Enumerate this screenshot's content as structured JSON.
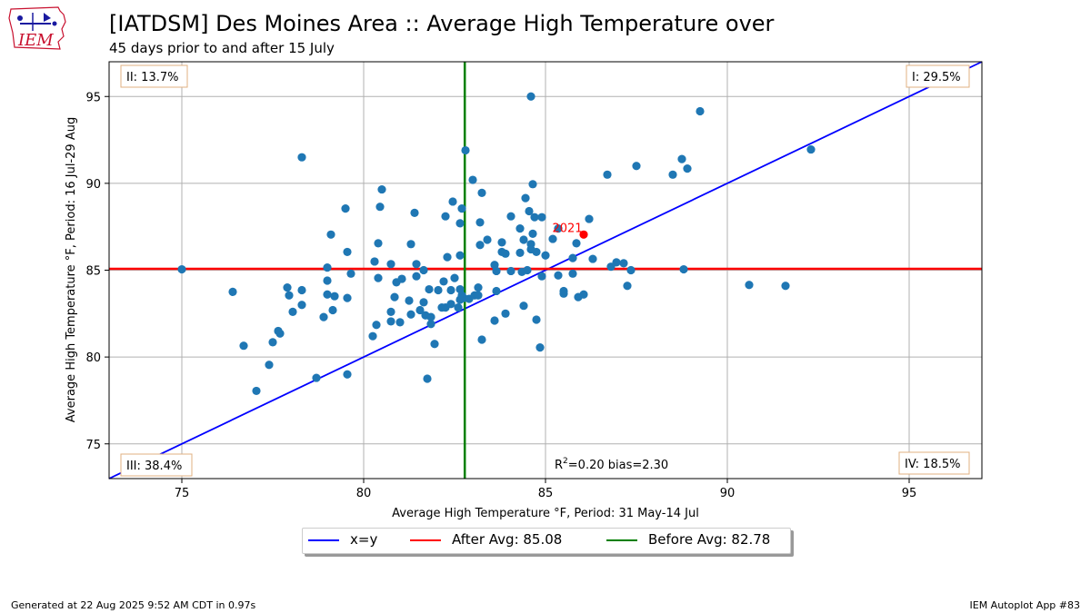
{
  "header": {
    "title": "[IATDSM] Des Moines Area :: Average High Temperature over",
    "subtitle": "45 days prior to and after 15 July"
  },
  "logo": {
    "text": "IEM",
    "icon": "iowa-state-outline-weather-icon"
  },
  "footer": {
    "generated": "Generated at 22 Aug 2025 9:52 AM CDT in 0.97s",
    "app": "IEM Autoplot App #83"
  },
  "chart_data": {
    "type": "scatter",
    "xlabel": "Average High Temperature $^\\circ$F, Period: 31 May-14 Jul",
    "ylabel": "Average High Temperature $^\\circ$F, Period: 16 Jul-29 Aug",
    "xlabel_text": "Average High Temperature °F, Period: 31 May-14 Jul",
    "ylabel_text": "Average High Temperature °F, Period: 16 Jul-29 Aug",
    "xlim": [
      73,
      97
    ],
    "ylim": [
      73,
      97
    ],
    "xticks": [
      75,
      80,
      85,
      90,
      95
    ],
    "yticks": [
      75,
      80,
      85,
      90,
      95
    ],
    "grid": true,
    "quadrants": {
      "I": "I: 29.5%",
      "II": "II: 13.7%",
      "III": "III: 38.4%",
      "IV": "IV: 18.5%"
    },
    "stats_label": "R²=0.20 bias=2.30",
    "stats_prefix": "R",
    "stats_sup": "2",
    "stats_suffix": "=0.20 bias=2.30",
    "after_avg": 85.08,
    "before_avg": 82.78,
    "highlight": {
      "label": "2021",
      "x": 86.05,
      "y": 87.05,
      "color": "#ff0000"
    },
    "legend": [
      {
        "label": "x=y",
        "color": "#0000ff"
      },
      {
        "label": "After Avg: 85.08",
        "color": "#ff0000"
      },
      {
        "label": "Before Avg: 82.78",
        "color": "#008000"
      }
    ],
    "point_color": "#1f77b4",
    "points": [
      [
        75.0,
        85.05
      ],
      [
        76.4,
        83.75
      ],
      [
        76.7,
        80.65
      ],
      [
        77.05,
        78.05
      ],
      [
        77.4,
        79.55
      ],
      [
        77.5,
        80.85
      ],
      [
        77.65,
        81.5
      ],
      [
        77.7,
        81.35
      ],
      [
        77.9,
        84.0
      ],
      [
        77.95,
        83.55
      ],
      [
        78.05,
        82.6
      ],
      [
        78.3,
        83.85
      ],
      [
        78.3,
        83.0
      ],
      [
        78.3,
        91.5
      ],
      [
        78.7,
        78.8
      ],
      [
        78.9,
        82.3
      ],
      [
        79.0,
        85.15
      ],
      [
        79.0,
        84.4
      ],
      [
        79.0,
        83.6
      ],
      [
        79.1,
        87.05
      ],
      [
        79.15,
        82.7
      ],
      [
        79.2,
        83.5
      ],
      [
        79.5,
        88.55
      ],
      [
        79.55,
        86.05
      ],
      [
        79.55,
        83.4
      ],
      [
        79.55,
        79.0
      ],
      [
        79.65,
        84.8
      ],
      [
        80.25,
        81.2
      ],
      [
        80.3,
        85.5
      ],
      [
        80.35,
        81.85
      ],
      [
        80.4,
        86.55
      ],
      [
        80.4,
        84.55
      ],
      [
        80.45,
        88.65
      ],
      [
        80.5,
        89.65
      ],
      [
        80.75,
        85.35
      ],
      [
        80.75,
        82.6
      ],
      [
        80.75,
        82.05
      ],
      [
        80.85,
        83.45
      ],
      [
        80.9,
        84.3
      ],
      [
        81.0,
        82.0
      ],
      [
        81.05,
        84.5
      ],
      [
        81.25,
        83.25
      ],
      [
        81.3,
        82.45
      ],
      [
        81.3,
        86.5
      ],
      [
        81.4,
        88.3
      ],
      [
        81.45,
        85.35
      ],
      [
        81.45,
        84.65
      ],
      [
        81.55,
        82.7
      ],
      [
        81.65,
        85.0
      ],
      [
        81.65,
        83.15
      ],
      [
        81.7,
        82.4
      ],
      [
        81.75,
        78.75
      ],
      [
        81.8,
        83.9
      ],
      [
        81.85,
        81.9
      ],
      [
        81.85,
        82.3
      ],
      [
        81.95,
        80.75
      ],
      [
        82.05,
        83.85
      ],
      [
        82.15,
        82.85
      ],
      [
        82.2,
        84.35
      ],
      [
        82.25,
        88.1
      ],
      [
        82.25,
        82.85
      ],
      [
        82.3,
        85.75
      ],
      [
        82.4,
        83.85
      ],
      [
        82.4,
        83.05
      ],
      [
        82.45,
        88.95
      ],
      [
        82.5,
        84.55
      ],
      [
        82.6,
        82.85
      ],
      [
        82.65,
        83.9
      ],
      [
        82.65,
        83.3
      ],
      [
        82.65,
        85.85
      ],
      [
        82.65,
        87.7
      ],
      [
        82.7,
        88.55
      ],
      [
        82.7,
        83.55
      ],
      [
        82.75,
        83.4
      ],
      [
        82.8,
        91.9
      ],
      [
        82.9,
        83.35
      ],
      [
        83.0,
        90.2
      ],
      [
        83.05,
        83.55
      ],
      [
        83.15,
        84.0
      ],
      [
        83.15,
        83.55
      ],
      [
        83.2,
        87.75
      ],
      [
        83.2,
        86.45
      ],
      [
        83.25,
        81.0
      ],
      [
        83.25,
        89.45
      ],
      [
        83.4,
        86.75
      ],
      [
        83.6,
        85.3
      ],
      [
        83.6,
        82.1
      ],
      [
        83.65,
        84.95
      ],
      [
        83.65,
        83.8
      ],
      [
        83.8,
        86.6
      ],
      [
        83.8,
        86.05
      ],
      [
        83.9,
        82.5
      ],
      [
        83.9,
        85.95
      ],
      [
        84.05,
        88.1
      ],
      [
        84.05,
        84.95
      ],
      [
        84.3,
        87.4
      ],
      [
        84.3,
        86.0
      ],
      [
        84.35,
        84.9
      ],
      [
        84.4,
        86.75
      ],
      [
        84.4,
        82.95
      ],
      [
        84.45,
        89.15
      ],
      [
        84.5,
        85.0
      ],
      [
        84.55,
        88.4
      ],
      [
        84.6,
        95.0
      ],
      [
        84.6,
        86.5
      ],
      [
        84.6,
        86.2
      ],
      [
        84.65,
        89.95
      ],
      [
        84.65,
        87.1
      ],
      [
        84.7,
        88.05
      ],
      [
        84.75,
        86.05
      ],
      [
        84.75,
        82.15
      ],
      [
        84.85,
        80.55
      ],
      [
        84.9,
        84.65
      ],
      [
        84.9,
        88.05
      ],
      [
        85.0,
        85.85
      ],
      [
        85.2,
        86.8
      ],
      [
        85.35,
        87.4
      ],
      [
        85.35,
        84.7
      ],
      [
        85.5,
        83.8
      ],
      [
        85.5,
        83.65
      ],
      [
        85.75,
        85.7
      ],
      [
        85.75,
        84.8
      ],
      [
        85.85,
        86.55
      ],
      [
        85.9,
        83.45
      ],
      [
        86.05,
        83.6
      ],
      [
        86.2,
        87.95
      ],
      [
        86.3,
        85.65
      ],
      [
        86.7,
        90.5
      ],
      [
        86.8,
        85.2
      ],
      [
        86.95,
        85.45
      ],
      [
        87.15,
        85.4
      ],
      [
        87.25,
        84.1
      ],
      [
        87.35,
        85.0
      ],
      [
        87.5,
        91.0
      ],
      [
        88.5,
        90.5
      ],
      [
        88.75,
        91.4
      ],
      [
        88.8,
        85.05
      ],
      [
        88.9,
        90.85
      ],
      [
        89.25,
        94.15
      ],
      [
        90.6,
        84.15
      ],
      [
        91.6,
        84.1
      ],
      [
        92.3,
        91.95
      ]
    ]
  }
}
